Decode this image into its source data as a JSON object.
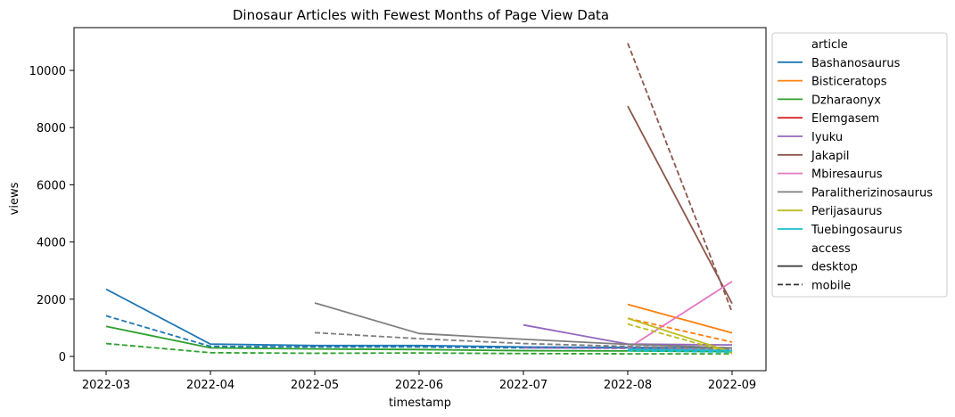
{
  "chart_data": {
    "type": "line",
    "title": "Dinosaur Articles with Fewest Months of Page View Data",
    "xlabel": "timestamp",
    "ylabel": "views",
    "x_ticks": [
      "2022-03",
      "2022-04",
      "2022-05",
      "2022-06",
      "2022-07",
      "2022-08",
      "2022-09"
    ],
    "y_ticks": [
      0,
      2000,
      4000,
      6000,
      8000,
      10000
    ],
    "ylim": [
      -500,
      11500
    ],
    "grid": false,
    "legend_placement": "outside right",
    "legend": {
      "hue_title": "article",
      "style_title": "access",
      "styles": [
        {
          "name": "desktop",
          "dash": "solid"
        },
        {
          "name": "mobile",
          "dash": "dashed"
        }
      ]
    },
    "series": [
      {
        "article": "Bashanosaurus",
        "color": "#1f77b4",
        "desktop": {
          "x": [
            "2022-03",
            "2022-04",
            "2022-05",
            "2022-06",
            "2022-07",
            "2022-08",
            "2022-09"
          ],
          "y": [
            2350,
            430,
            380,
            380,
            330,
            310,
            300
          ]
        },
        "mobile": {
          "x": [
            "2022-03",
            "2022-04",
            "2022-05",
            "2022-06",
            "2022-07",
            "2022-08",
            "2022-09"
          ],
          "y": [
            1420,
            350,
            330,
            330,
            300,
            300,
            290
          ]
        }
      },
      {
        "article": "Bisticeratops",
        "color": "#ff7f0e",
        "desktop": {
          "x": [
            "2022-08",
            "2022-09"
          ],
          "y": [
            1820,
            820
          ]
        },
        "mobile": {
          "x": [
            "2022-08",
            "2022-09"
          ],
          "y": [
            1330,
            500
          ]
        }
      },
      {
        "article": "Dzharaonyx",
        "color": "#2ca02c",
        "desktop": {
          "x": [
            "2022-03",
            "2022-04",
            "2022-05",
            "2022-06",
            "2022-07",
            "2022-08",
            "2022-09"
          ],
          "y": [
            1050,
            300,
            260,
            240,
            200,
            190,
            170
          ]
        },
        "mobile": {
          "x": [
            "2022-03",
            "2022-04",
            "2022-05",
            "2022-06",
            "2022-07",
            "2022-08",
            "2022-09"
          ],
          "y": [
            450,
            130,
            110,
            120,
            100,
            90,
            90
          ]
        }
      },
      {
        "article": "Elemgasem",
        "color": "#d62728",
        "desktop": {
          "x": [
            "2022-08",
            "2022-09"
          ],
          "y": [
            260,
            200
          ]
        },
        "mobile": {
          "x": [
            "2022-08",
            "2022-09"
          ],
          "y": [
            230,
            160
          ]
        }
      },
      {
        "article": "Iyuku",
        "color": "#9467bd",
        "desktop": {
          "x": [
            "2022-07",
            "2022-08",
            "2022-09"
          ],
          "y": [
            1100,
            430,
            400
          ]
        },
        "mobile": {
          "x": [
            "2022-07",
            "2022-08",
            "2022-09"
          ],
          "y": [
            300,
            280,
            260
          ]
        }
      },
      {
        "article": "Jakapil",
        "color": "#8c564b",
        "desktop": {
          "x": [
            "2022-08",
            "2022-09"
          ],
          "y": [
            8750,
            1850
          ]
        },
        "mobile": {
          "x": [
            "2022-08",
            "2022-09"
          ],
          "y": [
            10950,
            1550
          ]
        }
      },
      {
        "article": "Mbiresaurus",
        "color": "#e377c2",
        "desktop": {
          "x": [
            "2022-08",
            "2022-09"
          ],
          "y": [
            280,
            2620
          ]
        },
        "mobile": {
          "x": [
            "2022-08",
            "2022-09"
          ],
          "y": [
            220,
            260
          ]
        }
      },
      {
        "article": "Paralitherizinosaurus",
        "color": "#7f7f7f",
        "desktop": {
          "x": [
            "2022-05",
            "2022-06",
            "2022-07",
            "2022-08",
            "2022-09"
          ],
          "y": [
            1870,
            800,
            600,
            420,
            300
          ]
        },
        "mobile": {
          "x": [
            "2022-05",
            "2022-06",
            "2022-07",
            "2022-08",
            "2022-09"
          ],
          "y": [
            830,
            620,
            450,
            350,
            250
          ]
        }
      },
      {
        "article": "Perijasaurus",
        "color": "#bcbd22",
        "desktop": {
          "x": [
            "2022-08",
            "2022-09"
          ],
          "y": [
            1330,
            150
          ]
        },
        "mobile": {
          "x": [
            "2022-08",
            "2022-09"
          ],
          "y": [
            1130,
            120
          ]
        }
      },
      {
        "article": "Tuebingosaurus",
        "color": "#17becf",
        "desktop": {
          "x": [
            "2022-08",
            "2022-09"
          ],
          "y": [
            250,
            200
          ]
        },
        "mobile": {
          "x": [
            "2022-08",
            "2022-09"
          ],
          "y": [
            200,
            150
          ]
        }
      }
    ]
  }
}
